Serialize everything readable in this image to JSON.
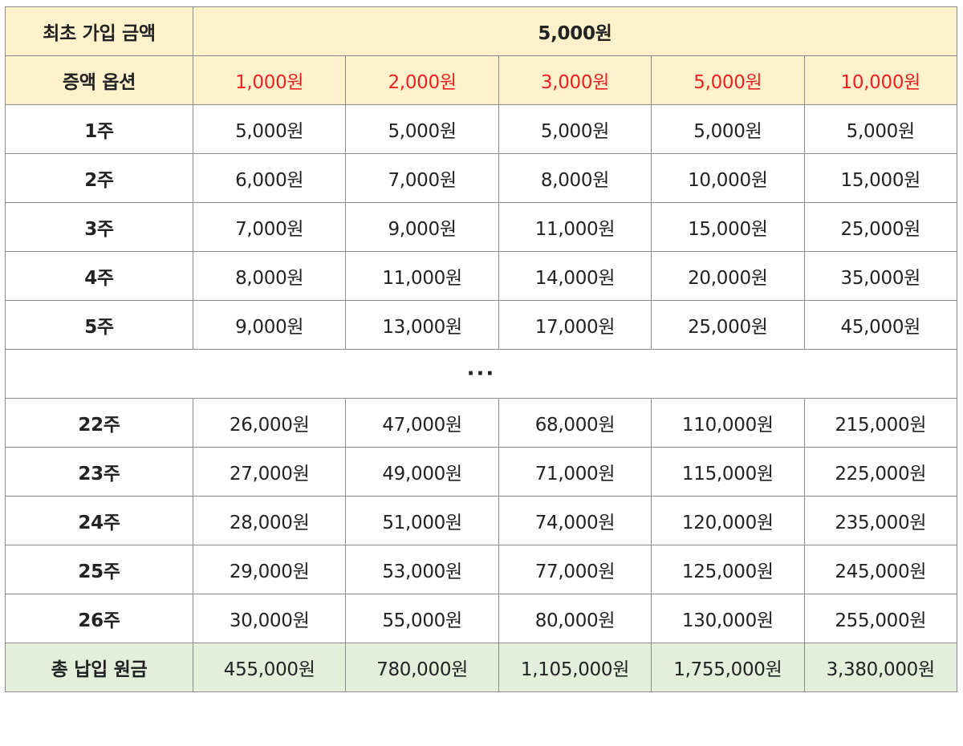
{
  "initial": {
    "label": "최초 가입 금액",
    "value": "5,000원"
  },
  "options": {
    "label": "증액 옵션",
    "values": [
      "1,000원",
      "2,000원",
      "3,000원",
      "5,000원",
      "10,000원"
    ]
  },
  "rows_top": [
    {
      "week": "1주",
      "cells": [
        "5,000원",
        "5,000원",
        "5,000원",
        "5,000원",
        "5,000원"
      ]
    },
    {
      "week": "2주",
      "cells": [
        "6,000원",
        "7,000원",
        "8,000원",
        "10,000원",
        "15,000원"
      ]
    },
    {
      "week": "3주",
      "cells": [
        "7,000원",
        "9,000원",
        "11,000원",
        "15,000원",
        "25,000원"
      ]
    },
    {
      "week": "4주",
      "cells": [
        "8,000원",
        "11,000원",
        "14,000원",
        "20,000원",
        "35,000원"
      ]
    },
    {
      "week": "5주",
      "cells": [
        "9,000원",
        "13,000원",
        "17,000원",
        "25,000원",
        "45,000원"
      ]
    }
  ],
  "ellipsis": "···",
  "rows_bottom": [
    {
      "week": "22주",
      "cells": [
        "26,000원",
        "47,000원",
        "68,000원",
        "110,000원",
        "215,000원"
      ]
    },
    {
      "week": "23주",
      "cells": [
        "27,000원",
        "49,000원",
        "71,000원",
        "115,000원",
        "225,000원"
      ]
    },
    {
      "week": "24주",
      "cells": [
        "28,000원",
        "51,000원",
        "74,000원",
        "120,000원",
        "235,000원"
      ]
    },
    {
      "week": "25주",
      "cells": [
        "29,000원",
        "53,000원",
        "77,000원",
        "125,000원",
        "245,000원"
      ]
    },
    {
      "week": "26주",
      "cells": [
        "30,000원",
        "55,000원",
        "80,000원",
        "130,000원",
        "255,000원"
      ]
    }
  ],
  "total": {
    "label": "총 납입 원금",
    "values": [
      "455,000원",
      "780,000원",
      "1,105,000원",
      "1,755,000원",
      "3,380,000원"
    ]
  },
  "colors": {
    "header_bg": "#fff1cc",
    "option_text": "#ee2222",
    "total_bg": "#e3eedb",
    "border": "#8a8a8a"
  }
}
